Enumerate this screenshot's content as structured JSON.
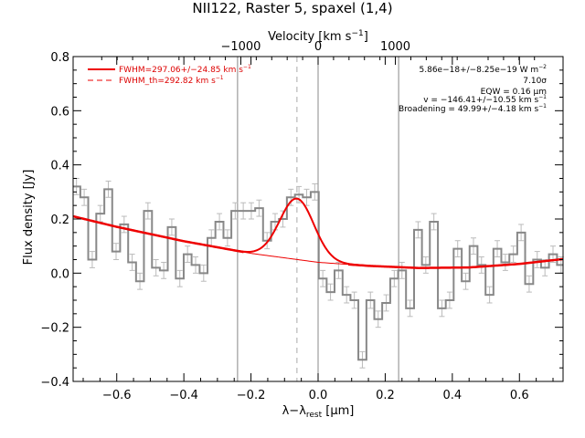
{
  "chart_data": {
    "type": "line",
    "title": "NII122, Raster 5, spaxel (1,4)",
    "xlabel": "λ−λ",
    "xlabel_sub": "rest",
    "xlabel_unit": " [μm]",
    "ylabel": "Flux density [Jy]",
    "top_xlabel": "Velocity [km s",
    "top_xlabel_sup": "−1",
    "top_xlabel_end": "]",
    "xlim": [
      -0.73,
      0.73
    ],
    "ylim": [
      -0.4,
      0.8
    ],
    "top_xlim": [
      -3170,
      3170
    ],
    "x_ticks": [
      -0.6,
      -0.4,
      -0.2,
      0.0,
      0.2,
      0.4,
      0.6
    ],
    "x_tick_labels": [
      "−0.6",
      "−0.4",
      "−0.2",
      "0.0",
      "0.2",
      "0.4",
      "0.6"
    ],
    "y_ticks": [
      -0.4,
      -0.2,
      0.0,
      0.2,
      0.4,
      0.6,
      0.8
    ],
    "y_tick_labels": [
      "−0.4",
      "−0.2",
      "0.0",
      "0.2",
      "0.4",
      "0.6",
      "0.8"
    ],
    "top_ticks": [
      -1000,
      0,
      1000
    ],
    "top_tick_labels": [
      "−1000",
      "0",
      "1000"
    ],
    "vertical_lines": [
      -0.24,
      0.0,
      0.24
    ],
    "dashed_line": -0.063,
    "colors": {
      "data": "#888888",
      "fit": "#ee0000",
      "axis": "#000000",
      "errorbar": "#bbbbbb",
      "vline": "#888888"
    },
    "series": [
      {
        "name": "data",
        "x": [
          -0.72,
          -0.697,
          -0.673,
          -0.649,
          -0.625,
          -0.602,
          -0.578,
          -0.554,
          -0.531,
          -0.507,
          -0.483,
          -0.46,
          -0.436,
          -0.412,
          -0.389,
          -0.365,
          -0.341,
          -0.318,
          -0.294,
          -0.27,
          -0.247,
          -0.223,
          -0.199,
          -0.176,
          -0.152,
          -0.128,
          -0.105,
          -0.081,
          -0.057,
          -0.034,
          -0.01,
          0.014,
          0.037,
          0.061,
          0.085,
          0.108,
          0.132,
          0.156,
          0.179,
          0.203,
          0.227,
          0.25,
          0.274,
          0.298,
          0.321,
          0.345,
          0.369,
          0.392,
          0.416,
          0.44,
          0.463,
          0.487,
          0.511,
          0.534,
          0.558,
          0.582,
          0.605,
          0.629,
          0.653,
          0.676,
          0.7,
          0.724
        ],
        "y": [
          0.32,
          0.28,
          0.05,
          0.22,
          0.31,
          0.08,
          0.18,
          0.04,
          -0.03,
          0.23,
          0.02,
          0.01,
          0.17,
          -0.02,
          0.07,
          0.03,
          0.0,
          0.13,
          0.19,
          0.13,
          0.23,
          0.23,
          0.23,
          0.24,
          0.12,
          0.19,
          0.2,
          0.28,
          0.29,
          0.28,
          0.3,
          -0.02,
          -0.07,
          0.01,
          -0.08,
          -0.1,
          -0.32,
          -0.1,
          -0.17,
          -0.11,
          -0.02,
          0.01,
          -0.13,
          0.16,
          0.03,
          0.19,
          -0.13,
          -0.1,
          0.09,
          -0.03,
          0.1,
          0.03,
          -0.08,
          0.09,
          0.04,
          0.07,
          0.15,
          -0.04,
          0.05,
          0.02,
          0.07,
          0.03
        ],
        "err": 0.03
      },
      {
        "name": "FWHM=297.06+/−24.85 km s",
        "sup": "−1",
        "type": "continuum+gaussian",
        "continuum_x": [
          -0.73,
          -0.6,
          -0.4,
          -0.2,
          0.0,
          0.15,
          0.3,
          0.45,
          0.6,
          0.73
        ],
        "continuum_y": [
          0.21,
          0.171,
          0.118,
          0.073,
          0.04,
          0.027,
          0.019,
          0.021,
          0.034,
          0.052
        ],
        "peak": 0.225,
        "center": -0.063,
        "fwhm_um": 0.12
      },
      {
        "name": "FWHM_th=292.82 km s",
        "sup": "−1",
        "type": "dashed-legend"
      }
    ],
    "annotations": [
      {
        "text": "5.86e−18+/−8.25e−19 W m",
        "sup": "−2"
      },
      {
        "text": "7.10σ",
        "sup": ""
      },
      {
        "text": "EQW = 0.16 μm",
        "sup": ""
      },
      {
        "text": "v = −146.41+/−10.55 km s",
        "sup": "−1"
      },
      {
        "text": "Broadening = 49.99+/−4.18 km s",
        "sup": "−1"
      }
    ],
    "legend_position": "top-left",
    "annotation_position": "top-right"
  }
}
